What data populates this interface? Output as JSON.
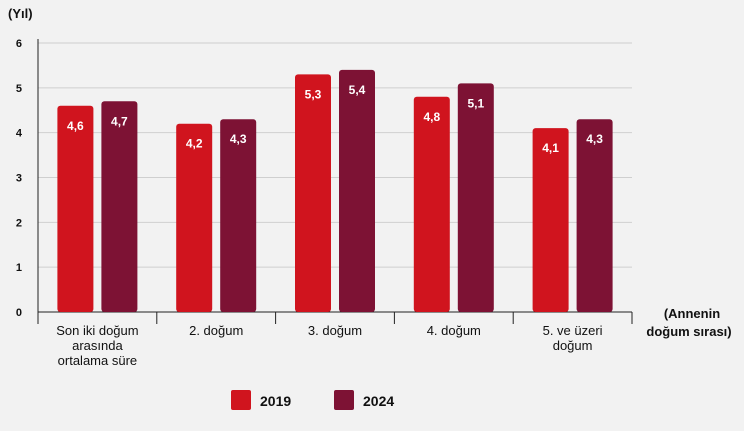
{
  "chart_data": {
    "type": "bar",
    "ylabel": "(Yıl)",
    "xlabel_line1": "(Annenin",
    "xlabel_line2": "doğum sırası)",
    "ylim": [
      0,
      6
    ],
    "yticks": [
      "0",
      "1",
      "2",
      "3",
      "4",
      "5",
      "6"
    ],
    "grid": true,
    "legend_position": "bottom-center",
    "categories": [
      [
        "Son iki doğum",
        "arasında",
        "ortalama süre"
      ],
      [
        "2. doğum"
      ],
      [
        "3. doğum"
      ],
      [
        "4. doğum"
      ],
      [
        "5. ve üzeri",
        "doğum"
      ]
    ],
    "series": [
      {
        "name": "2019",
        "color": "#d0141e",
        "values": [
          4.6,
          4.2,
          5.3,
          4.8,
          4.1
        ],
        "labels": [
          "4,6",
          "4,2",
          "5,3",
          "4,8",
          "4,1"
        ]
      },
      {
        "name": "2024",
        "color": "#7d1234",
        "values": [
          4.7,
          4.3,
          5.4,
          5.1,
          4.3
        ],
        "labels": [
          "4,7",
          "4,3",
          "5,4",
          "5,1",
          "4,3"
        ]
      }
    ]
  }
}
